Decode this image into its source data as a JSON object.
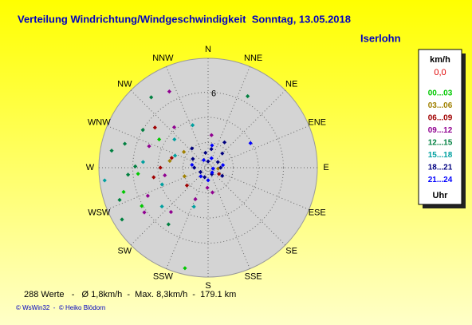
{
  "chart_data": {
    "type": "polar_scatter",
    "title": "Verteilung Windrichtung/Windgeschwindigkeit  Sonntag, 13.05.2018",
    "location": "Iserlohn",
    "direction_labels": [
      "N",
      "NNE",
      "NE",
      "ENE",
      "E",
      "ESE",
      "SE",
      "SSE",
      "S",
      "SSW",
      "SW",
      "WSW",
      "W",
      "WNW",
      "NW",
      "NNW"
    ],
    "rlim": [
      0,
      8.7
    ],
    "rgrid": [
      2,
      4,
      6
    ],
    "rticks": [
      6
    ],
    "legend_header": "km/h",
    "calm_value": "0,0",
    "legend_footer": "Uhr",
    "series": [
      {
        "name": "00...03",
        "color": "#00c800",
        "x": [
          254,
          193,
          300,
          265,
          240
        ],
        "values": [
          7.0,
          8.2,
          4.5,
          5.6,
          6.1
        ]
      },
      {
        "name": "03...06",
        "color": "#a08000",
        "x": [
          303,
          280,
          250,
          95
        ],
        "values": [
          2.3,
          3.1,
          2.0,
          0.8
        ]
      },
      {
        "name": "06...09",
        "color": "#a00000",
        "x": [
          307,
          270,
          285,
          260,
          230,
          120
        ],
        "values": [
          5.3,
          3.8,
          3.0,
          4.4,
          2.2,
          1.0
        ]
      },
      {
        "name": "09...12",
        "color": "#900090",
        "x": [
          333,
          245,
          220,
          202,
          182,
          6,
          290,
          320,
          260,
          235,
          170
        ],
        "values": [
          6.8,
          5.3,
          4.6,
          2.7,
          1.6,
          2.6,
          5.0,
          4.2,
          3.5,
          6.2,
          2.0
        ]
      },
      {
        "name": "12...15",
        "color": "#008040",
        "x": [
          321,
          29,
          271,
          239,
          286,
          300,
          250,
          280,
          215,
          265
        ],
        "values": [
          7.2,
          6.5,
          5.8,
          8.0,
          6.9,
          6.0,
          7.5,
          7.8,
          5.5,
          6.4
        ]
      },
      {
        "name": "15...18",
        "color": "#00a0a0",
        "x": [
          263,
          275,
          310,
          230,
          250,
          290,
          200,
          340
        ],
        "values": [
          8.3,
          5.2,
          3.5,
          4.8,
          3.9,
          2.8,
          3.3,
          3.6
        ]
      },
      {
        "name": "18...21",
        "color": "#000080",
        "x": [
          33,
          10,
          350,
          60,
          90,
          150,
          200,
          270,
          300,
          320,
          0,
          45,
          120,
          240
        ],
        "values": [
          2.4,
          1.5,
          1.2,
          0.9,
          1.0,
          0.6,
          0.8,
          1.1,
          1.4,
          2.0,
          0.5,
          1.6,
          1.3,
          0.7
        ]
      },
      {
        "name": "21...24",
        "color": "#0000ff",
        "x": [
          20,
          80,
          140,
          180,
          220,
          280,
          330,
          60,
          100,
          10
        ],
        "values": [
          0.8,
          1.2,
          0.5,
          1.0,
          0.9,
          1.3,
          0.7,
          3.9,
          0.4,
          1.8
        ]
      }
    ]
  },
  "footer": {
    "stats": "288 Werte   -   Ø 1,8km/h  -  Max. 8,3km/h  -  179.1 km",
    "credits": "© WsWin32  -  © Heiko Blödorn"
  }
}
